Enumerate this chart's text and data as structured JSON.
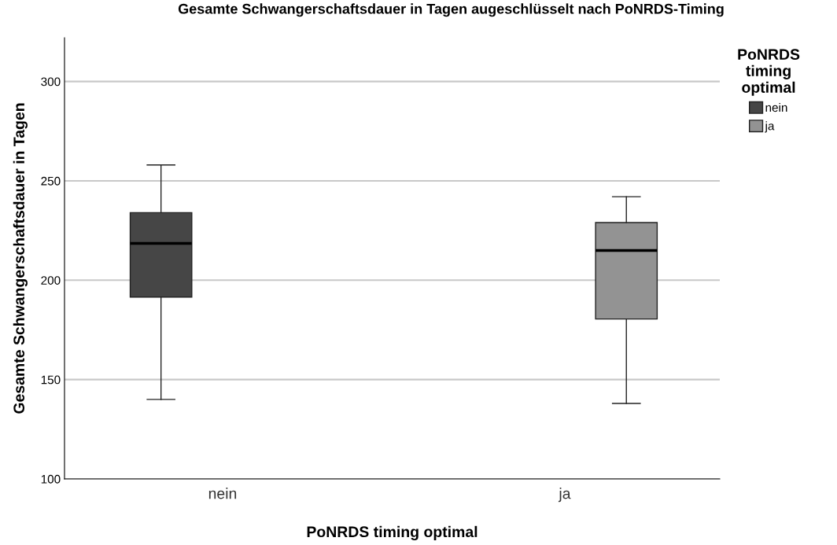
{
  "chart_data": {
    "type": "box",
    "title": "Gesamte Schwangerschaftsdauer in Tagen augeschlüsselt nach PoNRDS-Timing",
    "xlabel": "PoNRDS timing optimal",
    "ylabel": "Gesamte Schwangerschaftsdauer in Tagen",
    "legend_title": "PoNRDS\ntiming\noptimal",
    "categories": [
      "nein",
      "ja"
    ],
    "series": [
      {
        "name": "nein",
        "color": "#464646",
        "boxes": [
          {
            "low": 140,
            "q1": 191.5,
            "median": 218.5,
            "q3": 234,
            "high": 258
          },
          null
        ]
      },
      {
        "name": "ja",
        "color": "#939393",
        "boxes": [
          null,
          {
            "low": 138,
            "q1": 180.5,
            "median": 215,
            "q3": 229,
            "high": 242
          }
        ]
      }
    ],
    "ylim": [
      100,
      322
    ],
    "yticks": [
      100,
      150,
      200,
      250,
      300
    ],
    "grid": "y",
    "legend": "top right"
  }
}
